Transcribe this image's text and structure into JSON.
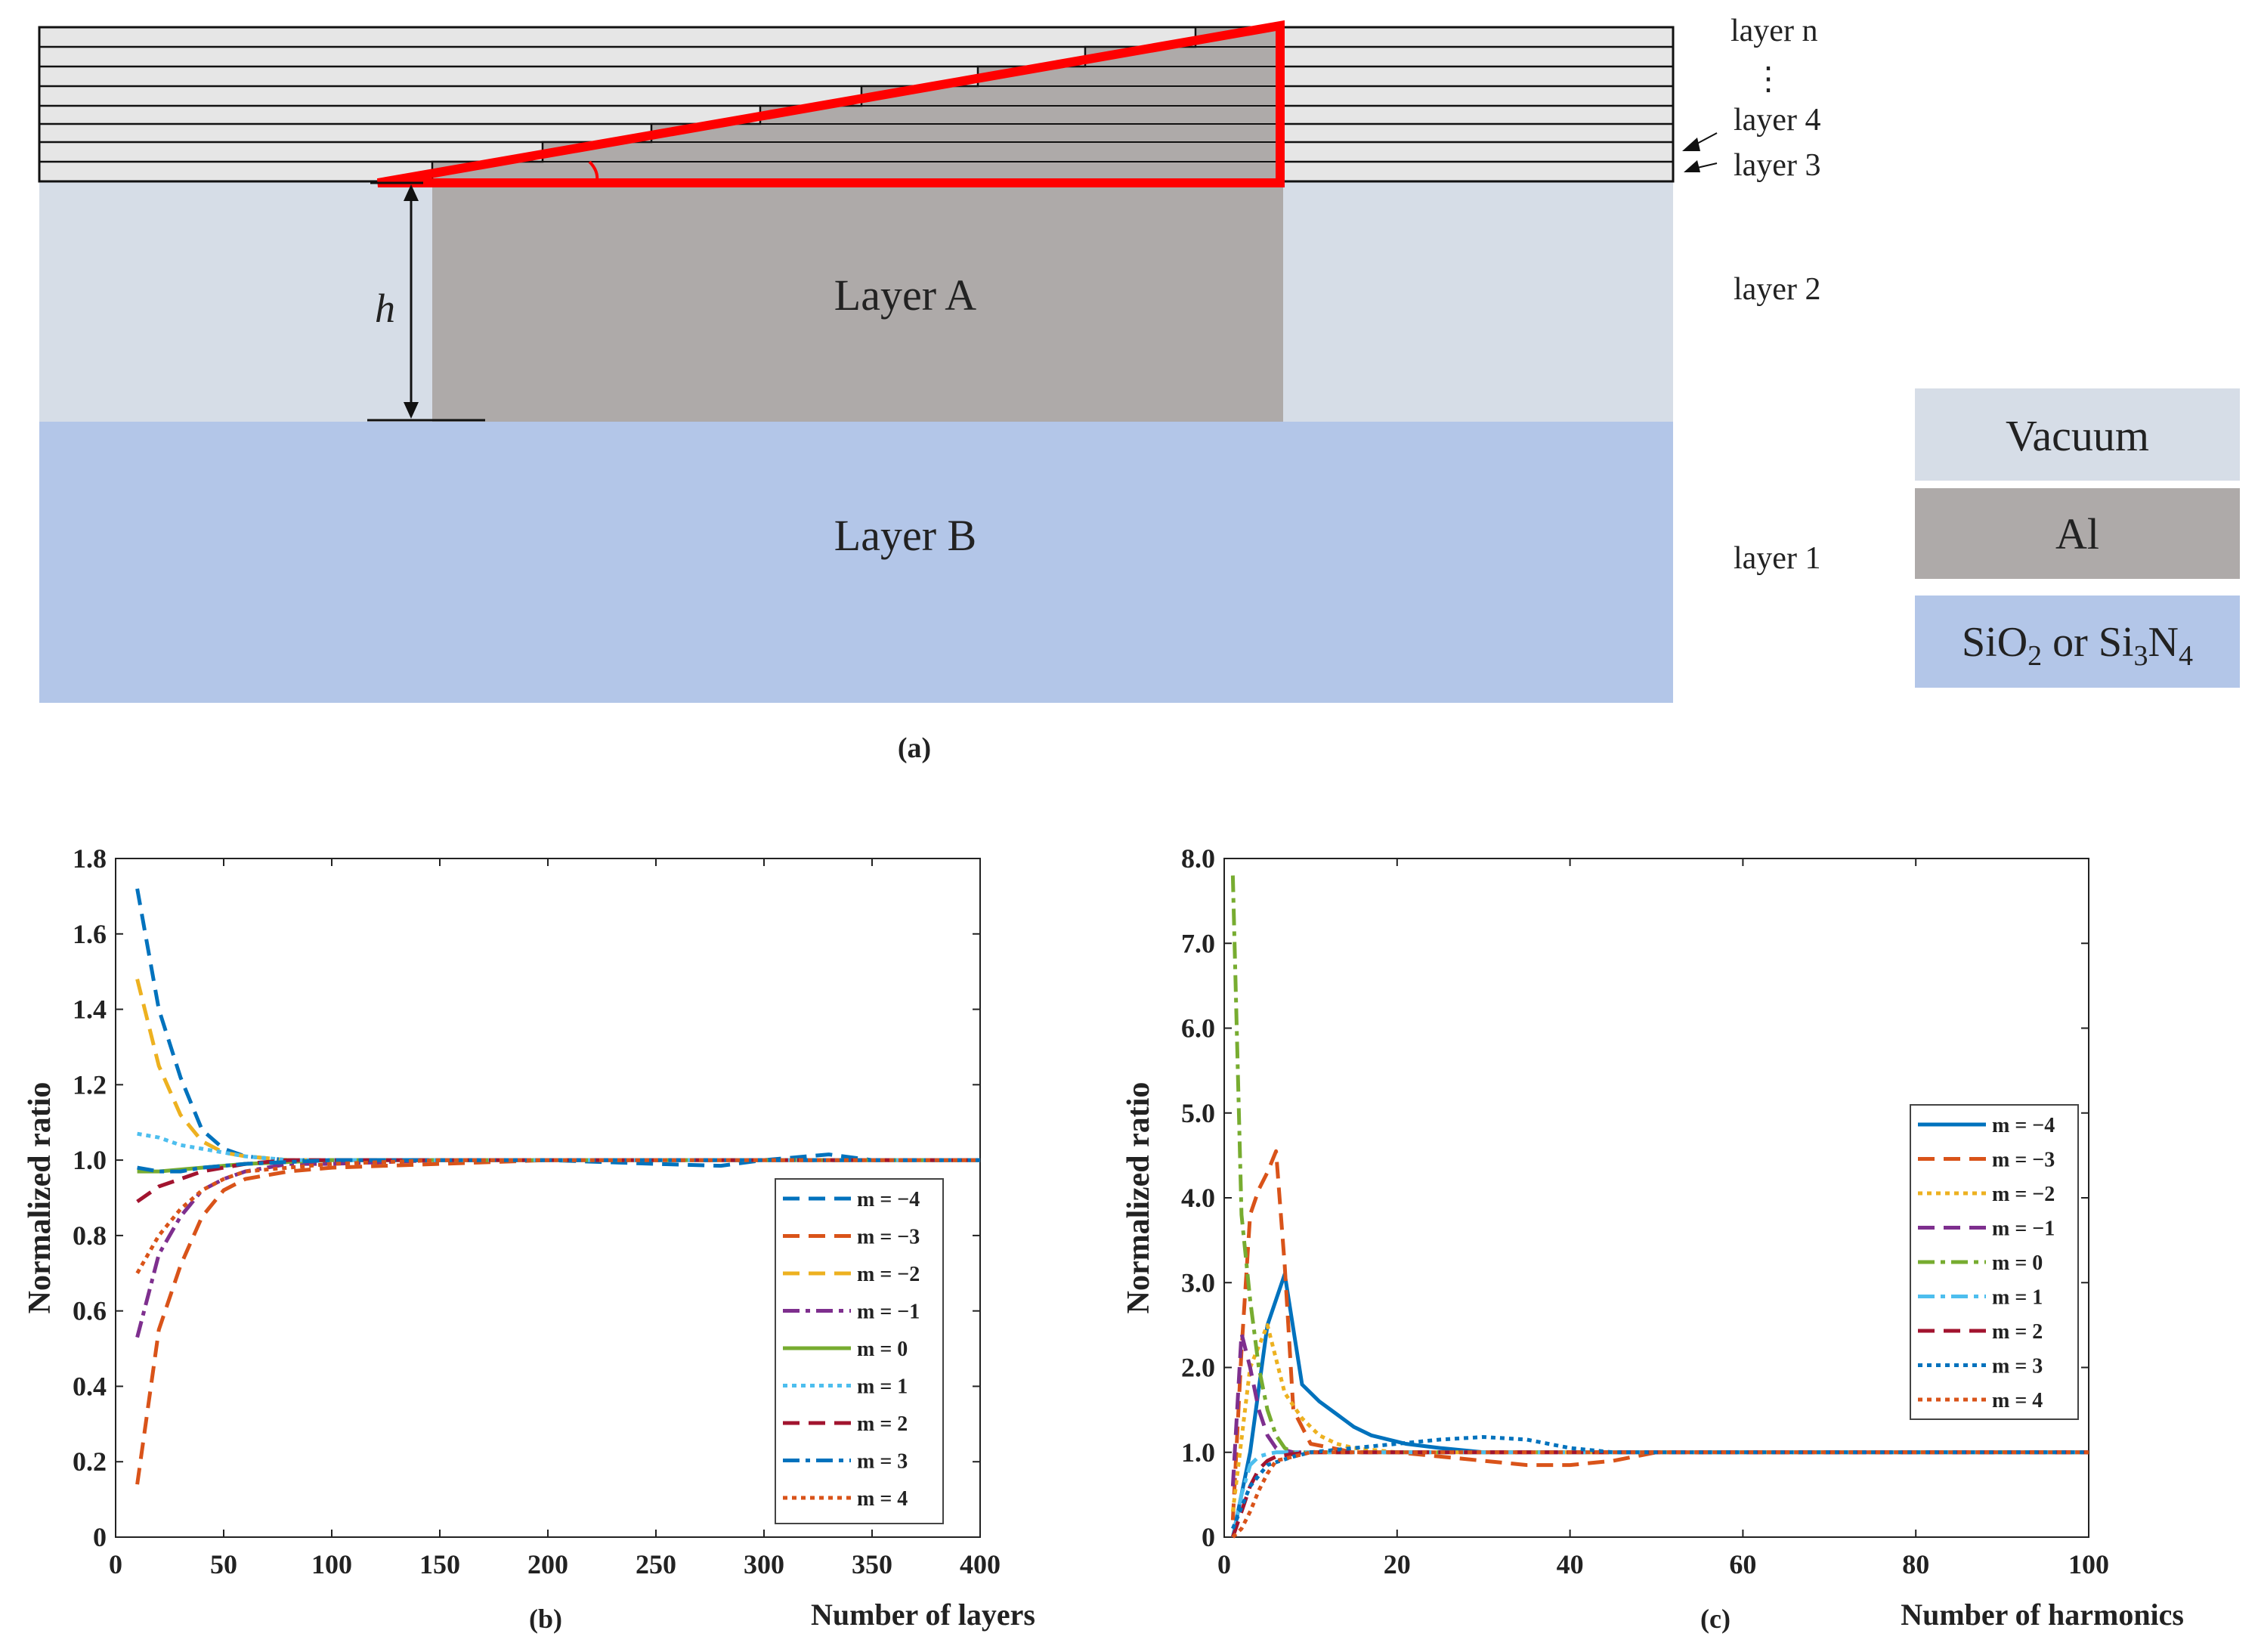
{
  "diagram": {
    "caption": "(a)",
    "layer_labels": [
      "layer n",
      "⋮",
      "layer 4",
      "layer 3",
      "layer 2",
      "layer 1"
    ],
    "regions": {
      "layer_a": "Layer A",
      "layer_b": "Layer B",
      "height": "h"
    },
    "legend": {
      "vacuum": "Vacuum",
      "al": "Al",
      "substrate_parts": [
        "SiO",
        "2",
        " or Si",
        "3",
        "N",
        "4"
      ]
    },
    "colors": {
      "vacuum": "#d6dde7",
      "al": "#aeaaa9",
      "substrate": "#b3c6e8",
      "triangle": "#ff0000"
    }
  },
  "chart_data": [
    {
      "id": "b",
      "type": "line",
      "caption": "(b)",
      "xlabel": "Number of layers",
      "ylabel": "Normalized ratio",
      "xlim": [
        0,
        400
      ],
      "ylim": [
        0,
        1.8
      ],
      "xticks": [
        0,
        50,
        100,
        150,
        200,
        250,
        300,
        350,
        400
      ],
      "yticks": [
        0,
        0.2,
        0.4,
        0.6,
        0.8,
        1.0,
        1.2,
        1.4,
        1.6,
        1.8
      ],
      "ytick_labels": [
        "0",
        "0.2",
        "0.4",
        "0.6",
        "0.8",
        "1.0",
        "1.2",
        "1.4",
        "1.6",
        "1.8"
      ],
      "legend_position": "bottom-right",
      "series": [
        {
          "name": "m = −4",
          "color": "#0072bd",
          "dash": "22 12",
          "x": [
            10,
            20,
            30,
            40,
            50,
            60,
            80,
            100,
            150,
            200,
            250,
            280,
            300,
            330,
            350,
            400
          ],
          "y": [
            1.72,
            1.4,
            1.22,
            1.08,
            1.03,
            1.01,
            1.0,
            1.0,
            1.0,
            1.0,
            0.99,
            0.985,
            1.0,
            1.015,
            1.0,
            1.0
          ]
        },
        {
          "name": "m = −3",
          "color": "#d95319",
          "dash": "22 12",
          "x": [
            10,
            20,
            30,
            40,
            50,
            60,
            80,
            100,
            150,
            200,
            250,
            300,
            350,
            400
          ],
          "y": [
            0.14,
            0.55,
            0.72,
            0.85,
            0.92,
            0.95,
            0.97,
            0.98,
            0.99,
            1.0,
            1.0,
            1.0,
            1.0,
            1.0
          ]
        },
        {
          "name": "m = −2",
          "color": "#edb120",
          "dash": "22 12",
          "x": [
            10,
            20,
            30,
            40,
            50,
            60,
            80,
            100,
            150,
            200,
            250,
            300,
            350,
            400
          ],
          "y": [
            1.48,
            1.25,
            1.12,
            1.05,
            1.02,
            1.01,
            1.0,
            1.0,
            1.0,
            1.0,
            1.0,
            1.0,
            1.0,
            1.0
          ]
        },
        {
          "name": "m = −1",
          "color": "#7e2f8e",
          "dash": "22 8 6 8",
          "x": [
            10,
            20,
            30,
            40,
            50,
            60,
            80,
            100,
            150,
            200,
            250,
            300,
            350,
            400
          ],
          "y": [
            0.53,
            0.75,
            0.85,
            0.92,
            0.95,
            0.97,
            0.99,
            0.99,
            1.0,
            1.0,
            1.0,
            1.0,
            1.0,
            1.0
          ]
        },
        {
          "name": "m = 0",
          "color": "#77ac30",
          "dash": "",
          "x": [
            10,
            20,
            40,
            60,
            100,
            150,
            200,
            300,
            400
          ],
          "y": [
            0.97,
            0.97,
            0.98,
            0.99,
            1.0,
            1.0,
            1.0,
            1.0,
            1.0
          ]
        },
        {
          "name": "m = 1",
          "color": "#4dbeee",
          "dash": "6 6",
          "x": [
            10,
            20,
            30,
            40,
            50,
            60,
            80,
            100,
            150,
            200,
            250,
            300,
            350,
            400
          ],
          "y": [
            1.07,
            1.06,
            1.04,
            1.03,
            1.02,
            1.01,
            1.0,
            1.0,
            1.0,
            1.0,
            1.0,
            1.0,
            1.0,
            1.0
          ]
        },
        {
          "name": "m = 2",
          "color": "#a2142f",
          "dash": "22 12",
          "x": [
            10,
            20,
            30,
            40,
            50,
            60,
            80,
            100,
            150,
            200,
            250,
            300,
            350,
            400
          ],
          "y": [
            0.89,
            0.93,
            0.95,
            0.97,
            0.98,
            0.99,
            1.0,
            1.0,
            1.0,
            1.0,
            1.0,
            1.0,
            1.0,
            1.0
          ]
        },
        {
          "name": "m = 3",
          "color": "#0072bd",
          "dash": "22 8 6 8",
          "x": [
            10,
            20,
            30,
            40,
            60,
            100,
            150,
            200,
            250,
            300,
            350,
            400
          ],
          "y": [
            0.98,
            0.97,
            0.97,
            0.98,
            0.99,
            1.0,
            1.0,
            1.0,
            1.0,
            1.0,
            1.0,
            1.0
          ]
        },
        {
          "name": "m = 4",
          "color": "#d95319",
          "dash": "6 6",
          "x": [
            10,
            20,
            30,
            40,
            50,
            60,
            80,
            100,
            150,
            200,
            250,
            300,
            350,
            400
          ],
          "y": [
            0.7,
            0.8,
            0.87,
            0.92,
            0.95,
            0.97,
            0.98,
            0.99,
            1.0,
            1.0,
            1.0,
            1.0,
            1.0,
            1.0
          ]
        }
      ]
    },
    {
      "id": "c",
      "type": "line",
      "caption": "(c)",
      "xlabel": "Number of harmonics",
      "ylabel": "Normalized ratio",
      "xlim": [
        0,
        100
      ],
      "ylim": [
        0,
        8
      ],
      "xticks": [
        0,
        20,
        40,
        60,
        80,
        100
      ],
      "yticks": [
        0,
        1,
        2,
        3,
        4,
        5,
        6,
        7,
        8
      ],
      "ytick_labels": [
        "0",
        "1.0",
        "2.0",
        "3.0",
        "4.0",
        "5.0",
        "6.0",
        "7.0",
        "8.0"
      ],
      "legend_position": "top-right",
      "series": [
        {
          "name": "m = −4",
          "color": "#0072bd",
          "dash": "",
          "x": [
            1,
            3,
            5,
            7,
            9,
            11,
            13,
            15,
            17,
            19,
            21,
            25,
            30,
            40,
            50,
            100
          ],
          "y": [
            0,
            1.0,
            2.5,
            3.1,
            1.8,
            1.6,
            1.45,
            1.3,
            1.2,
            1.15,
            1.1,
            1.05,
            1.0,
            1.0,
            1.0,
            1.0
          ]
        },
        {
          "name": "m = −3",
          "color": "#d95319",
          "dash": "22 12",
          "x": [
            1,
            2,
            3,
            4,
            5,
            6,
            7,
            8,
            10,
            15,
            20,
            30,
            35,
            40,
            45,
            50,
            100
          ],
          "y": [
            0.2,
            2.2,
            3.8,
            4.1,
            4.3,
            4.55,
            3.2,
            1.5,
            1.1,
            1.0,
            1.0,
            0.9,
            0.85,
            0.85,
            0.9,
            1.0,
            1.0
          ]
        },
        {
          "name": "m = −2",
          "color": "#edb120",
          "dash": "6 6",
          "x": [
            1,
            3,
            5,
            7,
            9,
            11,
            13,
            15,
            20,
            25,
            30,
            40,
            100
          ],
          "y": [
            0.3,
            2.0,
            2.5,
            1.7,
            1.4,
            1.2,
            1.1,
            1.05,
            1.0,
            1.0,
            1.0,
            1.0,
            1.0
          ]
        },
        {
          "name": "m = −1",
          "color": "#7e2f8e",
          "dash": "22 12",
          "x": [
            1,
            2,
            3,
            4,
            5,
            6,
            8,
            10,
            20,
            100
          ],
          "y": [
            0.6,
            2.4,
            2.0,
            1.5,
            1.2,
            1.05,
            1.0,
            1.0,
            1.0,
            1.0
          ]
        },
        {
          "name": "m = 0",
          "color": "#77ac30",
          "dash": "22 8 6 8",
          "x": [
            1,
            2,
            3,
            4,
            5,
            6,
            7,
            8,
            10,
            15,
            20,
            100
          ],
          "y": [
            7.8,
            3.8,
            2.8,
            2.0,
            1.5,
            1.2,
            1.05,
            1.0,
            1.0,
            1.0,
            1.0,
            1.0
          ]
        },
        {
          "name": "m = 1",
          "color": "#4dbeee",
          "dash": "22 8 6 8",
          "x": [
            1,
            2,
            3,
            4,
            5,
            6,
            8,
            10,
            20,
            100
          ],
          "y": [
            0,
            0.5,
            0.85,
            0.95,
            0.98,
            1.0,
            1.0,
            1.0,
            1.0,
            1.0
          ]
        },
        {
          "name": "m = 2",
          "color": "#a2142f",
          "dash": "22 12",
          "x": [
            1,
            2,
            3,
            4,
            5,
            6,
            8,
            10,
            20,
            100
          ],
          "y": [
            0,
            0.3,
            0.6,
            0.8,
            0.9,
            0.95,
            0.98,
            1.0,
            1.0,
            1.0
          ]
        },
        {
          "name": "m = 3",
          "color": "#0072bd",
          "dash": "6 6",
          "x": [
            1,
            3,
            5,
            8,
            10,
            15,
            20,
            25,
            30,
            35,
            40,
            45,
            50,
            100
          ],
          "y": [
            0.1,
            0.6,
            0.85,
            0.95,
            1.0,
            1.05,
            1.1,
            1.15,
            1.18,
            1.15,
            1.05,
            1.0,
            1.0,
            1.0
          ]
        },
        {
          "name": "m = 4",
          "color": "#d95319",
          "dash": "6 6",
          "x": [
            1,
            2,
            3,
            4,
            5,
            6,
            8,
            10,
            20,
            100
          ],
          "y": [
            0,
            0.1,
            0.3,
            0.55,
            0.75,
            0.9,
            0.95,
            1.0,
            1.0,
            1.0
          ]
        }
      ]
    }
  ]
}
